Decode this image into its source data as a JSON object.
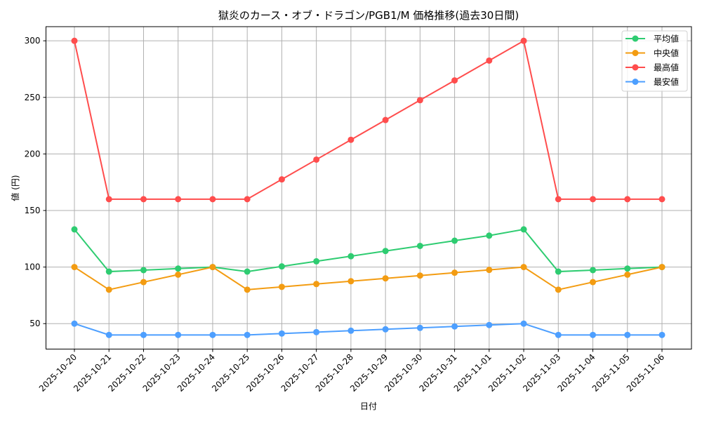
{
  "chart_data": {
    "type": "line",
    "title": "獄炎のカース・オブ・ドラゴン/PGB1/M 価格推移(過去30日間)",
    "xlabel": "日付",
    "ylabel": "値 (円)",
    "ylim": [
      27.5,
      312.5
    ],
    "yticks": [
      50,
      100,
      150,
      200,
      250,
      300
    ],
    "grid": true,
    "legend_position": "upper right",
    "x": [
      "2025-10-20",
      "2025-10-21",
      "2025-10-22",
      "2025-10-23",
      "2025-10-24",
      "2025-10-25",
      "2025-10-26",
      "2025-10-27",
      "2025-10-28",
      "2025-10-29",
      "2025-10-30",
      "2025-10-31",
      "2025-11-01",
      "2025-11-02",
      "2025-11-03",
      "2025-11-04",
      "2025-11-05",
      "2025-11-06"
    ],
    "series": [
      {
        "name": "平均値",
        "color": "#2ecc71",
        "values": [
          133.3,
          96.0,
          97.3,
          98.7,
          100.0,
          96.0,
          100.6,
          105.1,
          109.6,
          114.2,
          118.7,
          123.3,
          127.8,
          133.3,
          96.0,
          97.3,
          98.7,
          100.0
        ]
      },
      {
        "name": "中央値",
        "color": "#f39c12",
        "values": [
          100,
          80,
          86.7,
          93.3,
          100,
          80,
          82.5,
          85,
          87.5,
          90,
          92.5,
          95,
          97.5,
          100,
          80,
          86.7,
          93.3,
          100
        ]
      },
      {
        "name": "最高値",
        "color": "#ff4d4d",
        "values": [
          300,
          160,
          160,
          160,
          160,
          160,
          177.5,
          195,
          212.5,
          230,
          247.5,
          265,
          282.5,
          300,
          160,
          160,
          160,
          160
        ]
      },
      {
        "name": "最安値",
        "color": "#4d9fff",
        "values": [
          50,
          40,
          40,
          40,
          40,
          40,
          41.25,
          42.5,
          43.75,
          45,
          46.25,
          47.5,
          48.75,
          50,
          40,
          40,
          40,
          40
        ]
      }
    ]
  }
}
